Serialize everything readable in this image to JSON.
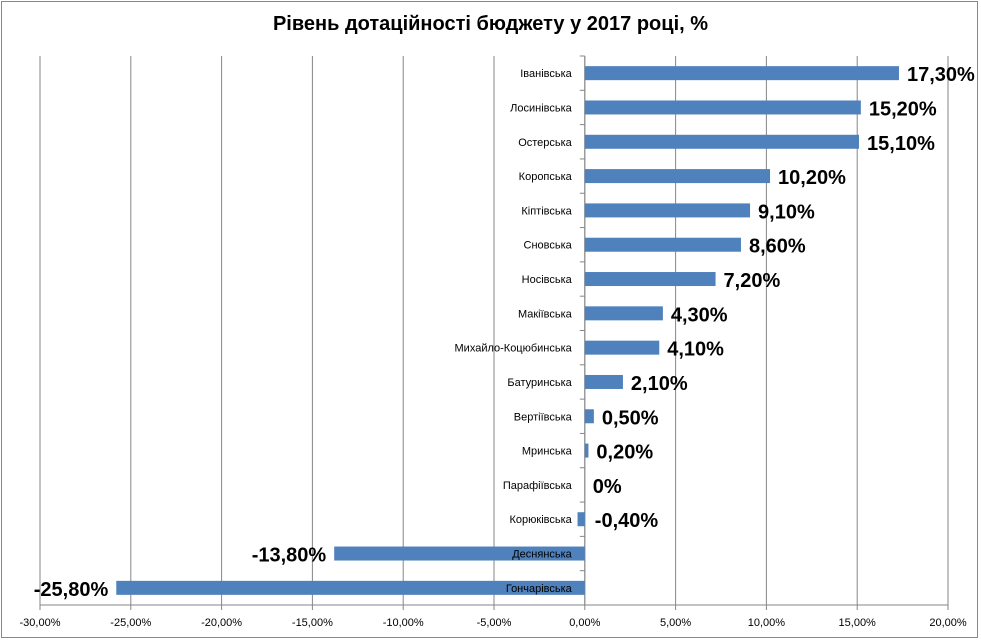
{
  "chart_data": {
    "type": "bar",
    "orientation": "horizontal",
    "title": "Рівень дотаційності бюджету у 2017 році, %",
    "xlabel": "",
    "ylabel": "",
    "xlim": [
      -30,
      20
    ],
    "grid": true,
    "x_ticks": [
      "-30,00%",
      "-25,00%",
      "-20,00%",
      "-15,00%",
      "-10,00%",
      "-5,00%",
      "0,00%",
      "5,00%",
      "10,00%",
      "15,00%",
      "20,00%"
    ],
    "x_tick_values": [
      -30,
      -25,
      -20,
      -15,
      -10,
      -5,
      0,
      5,
      10,
      15,
      20
    ],
    "categories": [
      "Іванівська",
      "Лосинівська",
      "Остерська",
      "Коропська",
      "Кіптівська",
      "Сновська",
      "Носівська",
      "Макіївська",
      "Михайло-Коцюбинська",
      "Батуринська",
      "Вертіївська",
      "Мринська",
      "Парафіївська",
      "Корюківська",
      "Деснянська",
      "Гончарівська"
    ],
    "values": [
      17.3,
      15.2,
      15.1,
      10.2,
      9.1,
      8.6,
      7.2,
      4.3,
      4.1,
      2.1,
      0.5,
      0.2,
      0,
      -0.4,
      -13.8,
      -25.8
    ],
    "data_labels": [
      "17,30%",
      "15,20%",
      "15,10%",
      "10,20%",
      "9,10%",
      "8,60%",
      "7,20%",
      "4,30%",
      "4,10%",
      "2,10%",
      "0,50%",
      "0,20%",
      "0%",
      "-0,40%",
      "-13,80%",
      "-25,80%"
    ],
    "bar_color": "#4f81bd",
    "grid_color": "#868686"
  }
}
